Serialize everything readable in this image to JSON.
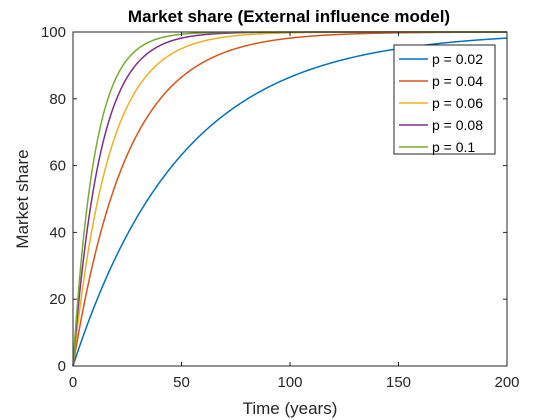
{
  "chart_data": {
    "type": "line",
    "title": "Market share (External influence model)",
    "xlabel": "Time (years)",
    "ylabel": "Market share",
    "xlim": [
      0,
      200
    ],
    "ylim": [
      0,
      100
    ],
    "xticks": [
      0,
      50,
      100,
      150,
      200
    ],
    "yticks": [
      0,
      20,
      40,
      60,
      80,
      100
    ],
    "grid": false,
    "legend_position": "top-right",
    "model": "100 * (1 - exp(-p * t))",
    "series": [
      {
        "name": "p = 0.02",
        "p": 0.02,
        "color": "#0072BD"
      },
      {
        "name": "p = 0.04",
        "p": 0.04,
        "color": "#D95319"
      },
      {
        "name": "p = 0.06",
        "p": 0.06,
        "color": "#EDB120"
      },
      {
        "name": "p = 0.08",
        "p": 0.08,
        "color": "#7E2F8E"
      },
      {
        "name": "p = 0.1",
        "p": 0.1,
        "color": "#77AC30"
      }
    ]
  }
}
